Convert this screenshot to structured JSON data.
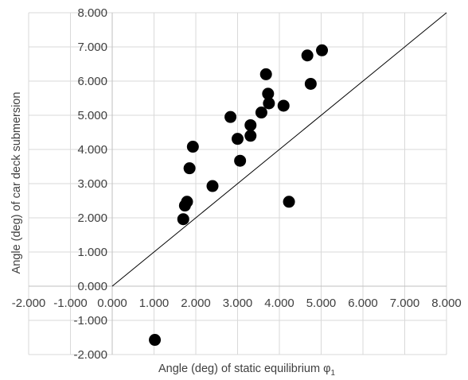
{
  "chart_data": {
    "type": "scatter",
    "title": "",
    "xlabel": "Angle (deg) of static equilibrium φ",
    "xlabel_subscript": "1",
    "ylabel": "Angle (deg) of car deck submersion",
    "xlim": [
      -2,
      8
    ],
    "ylim": [
      -2,
      8
    ],
    "x_ticks": [
      -2,
      -1,
      0,
      1,
      2,
      3,
      4,
      5,
      6,
      7,
      8
    ],
    "y_ticks": [
      -2,
      -1,
      0,
      1,
      2,
      3,
      4,
      5,
      6,
      7,
      8
    ],
    "x_tick_labels": [
      "-2.000",
      "-1.000",
      "0.000",
      "1.000",
      "2.000",
      "3.000",
      "4.000",
      "5.000",
      "6.000",
      "7.000",
      "8.000"
    ],
    "y_tick_labels": [
      "-2.000",
      "-1.000",
      "0.000",
      "1.000",
      "2.000",
      "3.000",
      "4.000",
      "5.000",
      "6.000",
      "7.000",
      "8.000"
    ],
    "grid": true,
    "legend": "none",
    "reference_line": {
      "from": [
        0,
        0
      ],
      "to": [
        8,
        8
      ]
    },
    "marker_color": "#000000",
    "line_color": "#000000",
    "grid_color": "#d9d9d9",
    "points": [
      {
        "x": 1.02,
        "y": -1.57
      },
      {
        "x": 1.7,
        "y": 1.96
      },
      {
        "x": 1.74,
        "y": 2.36
      },
      {
        "x": 1.79,
        "y": 2.47
      },
      {
        "x": 1.85,
        "y": 3.45
      },
      {
        "x": 1.93,
        "y": 4.08
      },
      {
        "x": 2.4,
        "y": 2.93
      },
      {
        "x": 2.83,
        "y": 4.95
      },
      {
        "x": 3.0,
        "y": 4.31
      },
      {
        "x": 3.06,
        "y": 3.67
      },
      {
        "x": 3.31,
        "y": 4.4
      },
      {
        "x": 3.31,
        "y": 4.71
      },
      {
        "x": 3.57,
        "y": 5.08
      },
      {
        "x": 3.68,
        "y": 6.2
      },
      {
        "x": 3.73,
        "y": 5.63
      },
      {
        "x": 3.75,
        "y": 5.35
      },
      {
        "x": 4.1,
        "y": 5.28
      },
      {
        "x": 4.23,
        "y": 2.47
      },
      {
        "x": 4.67,
        "y": 6.75
      },
      {
        "x": 4.75,
        "y": 5.92
      },
      {
        "x": 5.02,
        "y": 6.9
      }
    ]
  }
}
